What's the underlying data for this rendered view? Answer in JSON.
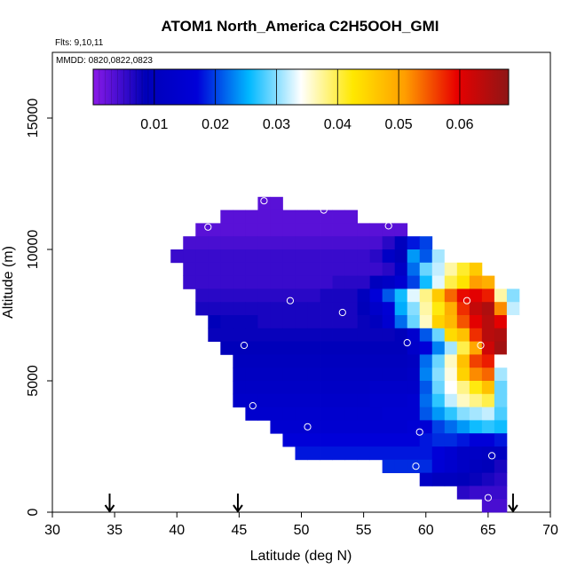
{
  "chart_data": {
    "type": "heatmap",
    "title": "ATOM1 North_America C2H5OOH_GMI",
    "subtitle_flights": "Flts: 9,10,11",
    "subtitle_dates": "MMDD: 0820,0822,0823",
    "xlabel": "Latitude (deg N)",
    "ylabel": "Altitude (m)",
    "xlim": [
      30,
      70
    ],
    "ylim": [
      0,
      17500
    ],
    "x_ticks": [
      "30",
      "35",
      "40",
      "45",
      "50",
      "55",
      "60",
      "65",
      "70"
    ],
    "y_ticks": [
      "0",
      "5000",
      "10000",
      "15000"
    ],
    "colorbar": {
      "range": [
        0,
        0.068
      ],
      "tick_labels": [
        "0.01",
        "0.02",
        "0.03",
        "0.04",
        "0.05",
        "0.06"
      ],
      "stops": [
        "#8a1ae8",
        "#0000b8",
        "#0000d8",
        "#00b8ff",
        "#ffffff",
        "#ffe800",
        "#ff9e00",
        "#e80000",
        "#8e1616"
      ]
    },
    "cell_size": {
      "dlat": 1.0,
      "dalt": 500
    },
    "rows": [
      {
        "alt": 11750,
        "start": 46.5,
        "values": [
          0.003,
          0.003
        ]
      },
      {
        "alt": 11250,
        "start": 43.5,
        "values": [
          0.003,
          0.003,
          0.003,
          0.003,
          0.003,
          0.003,
          0.003,
          0.003,
          0.003,
          0.003,
          0.003
        ]
      },
      {
        "alt": 10750,
        "start": 41.5,
        "values": [
          0.003,
          0.003,
          0.003,
          0.003,
          0.003,
          0.003,
          0.003,
          0.003,
          0.003,
          0.003,
          0.003,
          0.003,
          0.003,
          0.003,
          0.003,
          0.003,
          0.003
        ]
      },
      {
        "alt": 10250,
        "start": 40.5,
        "values": [
          0.004,
          0.004,
          0.004,
          0.004,
          0.004,
          0.004,
          0.004,
          0.004,
          0.004,
          0.004,
          0.004,
          0.004,
          0.004,
          0.004,
          0.004,
          0.004,
          0.006,
          0.01,
          0.018,
          0.02
        ]
      },
      {
        "alt": 9750,
        "start": 39.5,
        "values": [
          0.005,
          0.005,
          0.005,
          0.005,
          0.005,
          0.005,
          0.005,
          0.005,
          0.005,
          0.005,
          0.005,
          0.005,
          0.005,
          0.005,
          0.005,
          0.005,
          0.006,
          0.012,
          0.009,
          0.024,
          0.021,
          0.031,
          0.034
        ]
      },
      {
        "alt": 9250,
        "start": 40.5,
        "values": [
          0.005,
          0.005,
          0.005,
          0.005,
          0.005,
          0.005,
          0.005,
          0.005,
          0.005,
          0.005,
          0.005,
          0.005,
          0.005,
          0.005,
          0.005,
          0.005,
          0.006,
          0.012,
          0.022,
          0.029,
          0.032,
          0.037,
          0.041,
          0.046
        ]
      },
      {
        "alt": 8750,
        "start": 40.5,
        "values": [
          0.005,
          0.005,
          0.005,
          0.005,
          0.005,
          0.005,
          0.005,
          0.005,
          0.005,
          0.005,
          0.005,
          0.005,
          0.006,
          0.006,
          0.006,
          0.01,
          0.012,
          0.015,
          0.02,
          0.026,
          0.033,
          0.04,
          0.043,
          0.051,
          0.049
        ]
      },
      {
        "alt": 8250,
        "start": 41.5,
        "values": [
          0.006,
          0.006,
          0.006,
          0.006,
          0.006,
          0.006,
          0.006,
          0.006,
          0.006,
          0.006,
          0.007,
          0.007,
          0.007,
          0.01,
          0.017,
          0.021,
          0.026,
          0.033,
          0.038,
          0.046,
          0.054,
          0.059,
          0.06,
          0.058,
          0.037,
          0.03
        ]
      },
      {
        "alt": 7750,
        "start": 41.5,
        "values": [
          0.007,
          0.007,
          0.007,
          0.007,
          0.007,
          0.007,
          0.007,
          0.007,
          0.007,
          0.007,
          0.007,
          0.007,
          0.007,
          0.009,
          0.013,
          0.016,
          0.025,
          0.03,
          0.037,
          0.042,
          0.049,
          0.057,
          0.063,
          0.065,
          0.052,
          0.032
        ]
      },
      {
        "alt": 7250,
        "start": 42.5,
        "values": [
          0.009,
          0.008,
          0.008,
          0.008,
          0.007,
          0.007,
          0.007,
          0.007,
          0.007,
          0.007,
          0.007,
          0.007,
          0.008,
          0.01,
          0.015,
          0.022,
          0.029,
          0.036,
          0.045,
          0.048,
          0.055,
          0.06,
          0.064,
          0.06,
          0.034
        ]
      },
      {
        "alt": 6750,
        "start": 42.5,
        "values": [
          0.008,
          0.008,
          0.008,
          0.008,
          0.008,
          0.008,
          0.008,
          0.008,
          0.008,
          0.008,
          0.008,
          0.008,
          0.008,
          0.008,
          0.008,
          0.009,
          0.014,
          0.021,
          0.029,
          0.044,
          0.047,
          0.057,
          0.064,
          0.065,
          0.034
        ]
      },
      {
        "alt": 6250,
        "start": 43.5,
        "values": [
          0.009,
          0.009,
          0.009,
          0.009,
          0.009,
          0.009,
          0.009,
          0.009,
          0.009,
          0.009,
          0.009,
          0.009,
          0.009,
          0.009,
          0.009,
          0.013,
          0.017,
          0.023,
          0.031,
          0.04,
          0.05,
          0.062,
          0.066,
          0.034
        ]
      },
      {
        "alt": 5750,
        "start": 44.5,
        "values": [
          0.01,
          0.01,
          0.01,
          0.01,
          0.01,
          0.01,
          0.01,
          0.01,
          0.01,
          0.01,
          0.01,
          0.01,
          0.01,
          0.01,
          0.011,
          0.022,
          0.029,
          0.036,
          0.047,
          0.056,
          0.058,
          0.034
        ]
      },
      {
        "alt": 5250,
        "start": 44.5,
        "values": [
          0.011,
          0.011,
          0.011,
          0.011,
          0.011,
          0.011,
          0.011,
          0.011,
          0.011,
          0.011,
          0.011,
          0.011,
          0.011,
          0.011,
          0.012,
          0.023,
          0.03,
          0.035,
          0.045,
          0.052,
          0.054,
          0.031
        ]
      },
      {
        "alt": 4750,
        "start": 44.5,
        "values": [
          0.012,
          0.012,
          0.012,
          0.012,
          0.012,
          0.012,
          0.012,
          0.012,
          0.012,
          0.012,
          0.012,
          0.013,
          0.013,
          0.013,
          0.013,
          0.021,
          0.029,
          0.034,
          0.038,
          0.042,
          0.047,
          0.029
        ]
      },
      {
        "alt": 4250,
        "start": 44.5,
        "values": [
          0.013,
          0.013,
          0.013,
          0.013,
          0.013,
          0.013,
          0.013,
          0.013,
          0.013,
          0.013,
          0.013,
          0.014,
          0.014,
          0.014,
          0.015,
          0.022,
          0.027,
          0.032,
          0.036,
          0.038,
          0.04,
          0.029
        ]
      },
      {
        "alt": 3750,
        "start": 45.5,
        "values": [
          0.014,
          0.014,
          0.014,
          0.014,
          0.014,
          0.014,
          0.014,
          0.014,
          0.014,
          0.014,
          0.014,
          0.015,
          0.015,
          0.015,
          0.021,
          0.024,
          0.027,
          0.03,
          0.031,
          0.032,
          0.028
        ]
      },
      {
        "alt": 3250,
        "start": 47.5,
        "values": [
          0.015,
          0.015,
          0.015,
          0.015,
          0.015,
          0.015,
          0.015,
          0.015,
          0.015,
          0.015,
          0.015,
          0.016,
          0.016,
          0.02,
          0.022,
          0.024,
          0.026,
          0.027,
          0.026
        ]
      },
      {
        "alt": 2750,
        "start": 48.5,
        "values": [
          0.017,
          0.017,
          0.017,
          0.017,
          0.017,
          0.017,
          0.017,
          0.017,
          0.017,
          0.017,
          0.017,
          0.018,
          0.019,
          0.019,
          0.018,
          0.017,
          0.017,
          0.018
        ]
      },
      {
        "alt": 2250,
        "start": 49.5,
        "values": [
          0.018,
          0.018,
          0.018,
          0.018,
          0.018,
          0.018,
          0.018,
          0.018,
          0.018,
          0.018,
          0.018,
          0.017,
          0.015,
          0.012,
          0.012,
          0.011,
          0.011
        ]
      },
      {
        "alt": 1750,
        "start": 56.5,
        "values": [
          0.019,
          0.019,
          0.019,
          0.019,
          0.016,
          0.014,
          0.012,
          0.01,
          0.009,
          0.007
        ]
      },
      {
        "alt": 1250,
        "start": 59.5,
        "values": [
          0.012,
          0.01,
          0.01,
          0.009,
          0.008,
          0.007,
          0.006
        ]
      },
      {
        "alt": 750,
        "start": 62.5,
        "values": [
          0.006,
          0.005,
          0.005,
          0.005
        ]
      },
      {
        "alt": 250,
        "start": 64.5,
        "values": [
          0.004,
          0.004
        ]
      }
    ],
    "sample_points": [
      {
        "lat": 47.0,
        "alt": 11850
      },
      {
        "lat": 51.8,
        "alt": 11500
      },
      {
        "lat": 42.5,
        "alt": 10850
      },
      {
        "lat": 57.0,
        "alt": 10900
      },
      {
        "lat": 38.9,
        "alt": 9650
      },
      {
        "lat": 49.1,
        "alt": 8050
      },
      {
        "lat": 63.3,
        "alt": 8050
      },
      {
        "lat": 53.3,
        "alt": 7600
      },
      {
        "lat": 58.5,
        "alt": 6450
      },
      {
        "lat": 64.4,
        "alt": 6350
      },
      {
        "lat": 45.4,
        "alt": 6350
      },
      {
        "lat": 46.1,
        "alt": 4050
      },
      {
        "lat": 50.5,
        "alt": 3250
      },
      {
        "lat": 59.5,
        "alt": 3050
      },
      {
        "lat": 65.3,
        "alt": 2150
      },
      {
        "lat": 59.2,
        "alt": 1750
      },
      {
        "lat": 65.0,
        "alt": 550
      }
    ],
    "flight_markers": [
      34.6,
      44.9,
      67.0
    ]
  }
}
